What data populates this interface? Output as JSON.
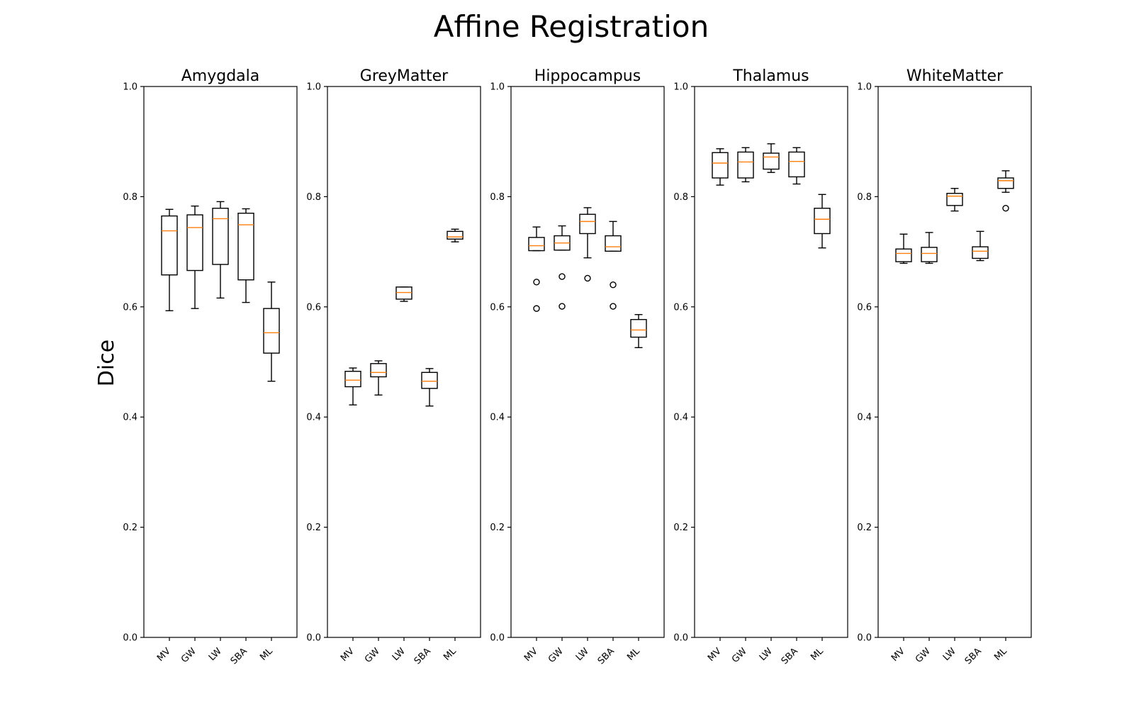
{
  "chart_data": {
    "type": "box",
    "title": "Affine Registration",
    "ylabel": "Dice",
    "ylim": [
      0,
      1
    ],
    "yticks": [
      0.0,
      0.2,
      0.4,
      0.6,
      0.8,
      1.0
    ],
    "categories": [
      "MV",
      "GW",
      "LW",
      "SBA",
      "ML"
    ],
    "colors": {
      "median": "#ff7f0e",
      "box": "#000000"
    },
    "panels": [
      {
        "name": "Amygdala",
        "boxes": [
          {
            "category": "MV",
            "whislo": 0.593,
            "q1": 0.658,
            "med": 0.738,
            "q3": 0.765,
            "whishi": 0.777,
            "fliers": []
          },
          {
            "category": "GW",
            "whislo": 0.597,
            "q1": 0.666,
            "med": 0.744,
            "q3": 0.767,
            "whishi": 0.783,
            "fliers": []
          },
          {
            "category": "LW",
            "whislo": 0.616,
            "q1": 0.677,
            "med": 0.76,
            "q3": 0.779,
            "whishi": 0.791,
            "fliers": []
          },
          {
            "category": "SBA",
            "whislo": 0.608,
            "q1": 0.649,
            "med": 0.749,
            "q3": 0.77,
            "whishi": 0.778,
            "fliers": []
          },
          {
            "category": "ML",
            "whislo": 0.465,
            "q1": 0.516,
            "med": 0.553,
            "q3": 0.597,
            "whishi": 0.645,
            "fliers": []
          }
        ]
      },
      {
        "name": "GreyMatter",
        "boxes": [
          {
            "category": "MV",
            "whislo": 0.422,
            "q1": 0.455,
            "med": 0.467,
            "q3": 0.483,
            "whishi": 0.489,
            "fliers": []
          },
          {
            "category": "GW",
            "whislo": 0.44,
            "q1": 0.473,
            "med": 0.481,
            "q3": 0.497,
            "whishi": 0.502,
            "fliers": []
          },
          {
            "category": "LW",
            "whislo": 0.61,
            "q1": 0.614,
            "med": 0.626,
            "q3": 0.636,
            "whishi": 0.636,
            "fliers": []
          },
          {
            "category": "SBA",
            "whislo": 0.42,
            "q1": 0.452,
            "med": 0.465,
            "q3": 0.481,
            "whishi": 0.488,
            "fliers": []
          },
          {
            "category": "ML",
            "whislo": 0.718,
            "q1": 0.723,
            "med": 0.727,
            "q3": 0.737,
            "whishi": 0.741,
            "fliers": []
          }
        ]
      },
      {
        "name": "Hippocampus",
        "boxes": [
          {
            "category": "MV",
            "whislo": 0.702,
            "q1": 0.702,
            "med": 0.711,
            "q3": 0.726,
            "whishi": 0.745,
            "fliers": [
              0.645,
              0.597
            ]
          },
          {
            "category": "GW",
            "whislo": 0.703,
            "q1": 0.703,
            "med": 0.716,
            "q3": 0.729,
            "whishi": 0.747,
            "fliers": [
              0.655,
              0.601
            ]
          },
          {
            "category": "LW",
            "whislo": 0.689,
            "q1": 0.733,
            "med": 0.755,
            "q3": 0.768,
            "whishi": 0.78,
            "fliers": [
              0.652
            ]
          },
          {
            "category": "SBA",
            "whislo": 0.701,
            "q1": 0.701,
            "med": 0.709,
            "q3": 0.729,
            "whishi": 0.755,
            "fliers": [
              0.64,
              0.601
            ]
          },
          {
            "category": "ML",
            "whislo": 0.526,
            "q1": 0.545,
            "med": 0.558,
            "q3": 0.577,
            "whishi": 0.586,
            "fliers": []
          }
        ]
      },
      {
        "name": "Thalamus",
        "boxes": [
          {
            "category": "MV",
            "whislo": 0.821,
            "q1": 0.834,
            "med": 0.861,
            "q3": 0.88,
            "whishi": 0.887,
            "fliers": []
          },
          {
            "category": "GW",
            "whislo": 0.827,
            "q1": 0.834,
            "med": 0.863,
            "q3": 0.881,
            "whishi": 0.889,
            "fliers": []
          },
          {
            "category": "LW",
            "whislo": 0.844,
            "q1": 0.85,
            "med": 0.872,
            "q3": 0.879,
            "whishi": 0.896,
            "fliers": []
          },
          {
            "category": "SBA",
            "whislo": 0.823,
            "q1": 0.836,
            "med": 0.864,
            "q3": 0.881,
            "whishi": 0.889,
            "fliers": []
          },
          {
            "category": "ML",
            "whislo": 0.707,
            "q1": 0.733,
            "med": 0.759,
            "q3": 0.779,
            "whishi": 0.804,
            "fliers": []
          }
        ]
      },
      {
        "name": "WhiteMatter",
        "boxes": [
          {
            "category": "MV",
            "whislo": 0.679,
            "q1": 0.682,
            "med": 0.697,
            "q3": 0.705,
            "whishi": 0.732,
            "fliers": []
          },
          {
            "category": "GW",
            "whislo": 0.679,
            "q1": 0.682,
            "med": 0.697,
            "q3": 0.708,
            "whishi": 0.735,
            "fliers": []
          },
          {
            "category": "LW",
            "whislo": 0.774,
            "q1": 0.784,
            "med": 0.801,
            "q3": 0.806,
            "whishi": 0.815,
            "fliers": []
          },
          {
            "category": "SBA",
            "whislo": 0.684,
            "q1": 0.688,
            "med": 0.701,
            "q3": 0.709,
            "whishi": 0.737,
            "fliers": []
          },
          {
            "category": "ML",
            "whislo": 0.808,
            "q1": 0.815,
            "med": 0.829,
            "q3": 0.834,
            "whishi": 0.847,
            "fliers": [
              0.779
            ]
          }
        ]
      }
    ]
  }
}
